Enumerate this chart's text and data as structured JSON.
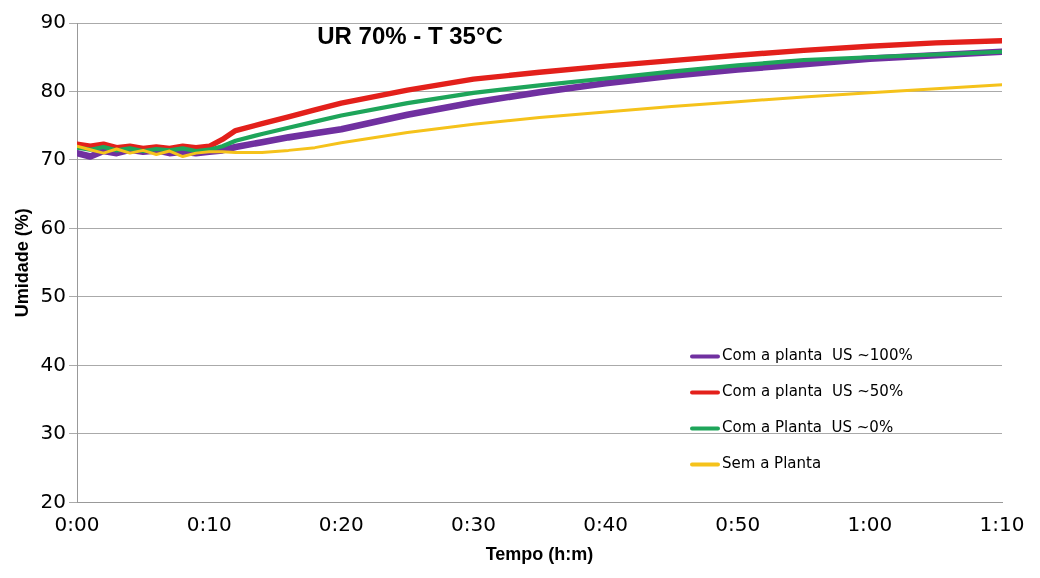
{
  "chart_data": {
    "type": "line",
    "title": "UR 70% - T 35°C",
    "xlabel": "Tempo (h:m)",
    "ylabel": "Umidade (%)",
    "x": [
      0,
      0.0167,
      0.0333,
      0.05,
      0.0667,
      0.0833,
      0.1,
      0.1167,
      0.1333,
      0.15,
      0.1667,
      0.1833,
      0.2,
      0.2333,
      0.2667,
      0.3,
      0.3333,
      0.4167,
      0.5,
      0.5833,
      0.6667,
      0.75,
      0.8333,
      0.9167,
      1,
      1.0833,
      1.1667
    ],
    "series": [
      {
        "name": "Com a planta  US ~100%",
        "color": "#7030a0",
        "values": [
          71.0,
          70.5,
          71.3,
          71.0,
          71.5,
          71.2,
          71.4,
          71.0,
          71.2,
          71.0,
          71.2,
          71.4,
          71.9,
          72.6,
          73.3,
          73.9,
          74.5,
          76.6,
          78.4,
          79.9,
          81.2,
          82.3,
          83.2,
          84.0,
          84.8,
          85.3,
          85.8
        ]
      },
      {
        "name": "Com a planta  US ~50%",
        "color": "#e3201b",
        "values": [
          72.3,
          72.0,
          72.3,
          71.8,
          72.0,
          71.7,
          71.9,
          71.7,
          72.0,
          71.8,
          72.0,
          73.0,
          74.3,
          75.3,
          76.3,
          77.3,
          78.3,
          80.2,
          81.8,
          82.8,
          83.7,
          84.5,
          85.3,
          86.0,
          86.6,
          87.1,
          87.4
        ]
      },
      {
        "name": "Com a Planta  US ~0%",
        "color": "#1ea55a",
        "values": [
          71.8,
          71.5,
          71.9,
          71.4,
          71.7,
          71.3,
          71.6,
          71.4,
          71.7,
          71.3,
          71.5,
          72.0,
          72.8,
          73.8,
          74.7,
          75.6,
          76.5,
          78.3,
          79.8,
          80.9,
          81.9,
          82.9,
          83.8,
          84.6,
          85.0,
          85.4,
          85.8
        ]
      },
      {
        "name": "Sem a Planta",
        "color": "#f5c21b",
        "values": [
          72.0,
          71.5,
          71.0,
          71.6,
          71.0,
          71.4,
          70.8,
          71.3,
          70.5,
          71.0,
          71.2,
          71.2,
          71.1,
          71.1,
          71.4,
          71.8,
          72.5,
          74.0,
          75.2,
          76.2,
          77.0,
          77.8,
          78.5,
          79.2,
          79.8,
          80.4,
          81.0
        ]
      }
    ],
    "xlim": [
      0,
      1.1667
    ],
    "xticks": [
      {
        "value": 0,
        "label": "0:00"
      },
      {
        "value": 0.1667,
        "label": "0:10"
      },
      {
        "value": 0.3333,
        "label": "0:20"
      },
      {
        "value": 0.5,
        "label": "0:30"
      },
      {
        "value": 0.6667,
        "label": "0:40"
      },
      {
        "value": 0.8333,
        "label": "0:50"
      },
      {
        "value": 1,
        "label": "1:00"
      },
      {
        "value": 1.1667,
        "label": "1:10"
      }
    ],
    "ylim": [
      20,
      90
    ],
    "yticks": [
      20,
      30,
      40,
      50,
      60,
      70,
      80,
      90
    ],
    "grid": "y",
    "legend": "bottom right",
    "marker": "none",
    "line_style": "solid"
  }
}
